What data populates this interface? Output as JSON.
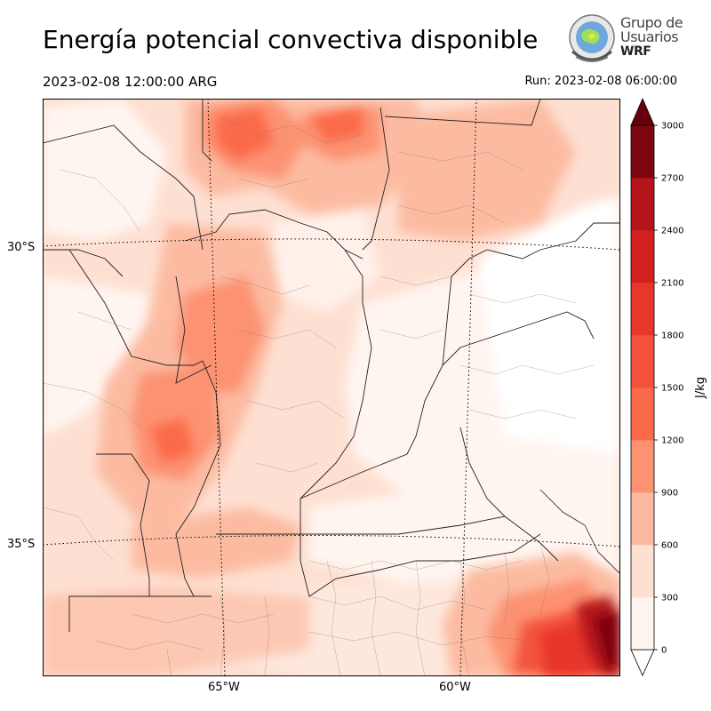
{
  "title": "Energía potencial convectiva disponible",
  "valid_time": "2023-02-08 12:00:00 ARG",
  "run_time": "Run: 2023-02-08 06:00:00",
  "logo": {
    "line1": "Grupo de",
    "line2": "Usuarios",
    "line3": "WRF"
  },
  "map": {
    "lat_labels": [
      "30°S",
      "35°S"
    ],
    "lon_labels": [
      "65°W",
      "60°W"
    ]
  },
  "colorbar": {
    "unit": "J/kg",
    "levels": [
      "0",
      "300",
      "600",
      "900",
      "1200",
      "1500",
      "1800",
      "2100",
      "2400",
      "2700",
      "3000"
    ],
    "colors": [
      "#fff5f0",
      "#fee0d2",
      "#fcbba1",
      "#fc9272",
      "#fb6a4a",
      "#f4523c",
      "#e8362b",
      "#d4201f",
      "#b3151b",
      "#7e0510"
    ],
    "extend_color": "#67000d"
  }
}
